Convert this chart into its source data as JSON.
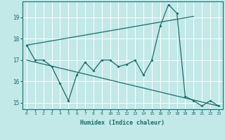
{
  "xlabel": "Humidex (Indice chaleur)",
  "ylabel": "",
  "background_color": "#c2e8e8",
  "line_color": "#1a6b6b",
  "grid_color": "#ffffff",
  "xlim": [
    -0.5,
    23.5
  ],
  "ylim": [
    14.7,
    19.75
  ],
  "x_ticks": [
    0,
    1,
    2,
    3,
    4,
    5,
    6,
    7,
    8,
    9,
    10,
    11,
    12,
    13,
    14,
    15,
    16,
    17,
    18,
    19,
    20,
    21,
    22,
    23
  ],
  "y_ticks": [
    15,
    16,
    17,
    18,
    19
  ],
  "series1_x": [
    0,
    1,
    2,
    3,
    4,
    5,
    6,
    7,
    8,
    9,
    10,
    11,
    12,
    13,
    14,
    15,
    16,
    17,
    18,
    19,
    20,
    21,
    22,
    23
  ],
  "series1_y": [
    17.7,
    17.0,
    17.0,
    16.7,
    15.9,
    15.1,
    16.3,
    16.9,
    16.5,
    17.0,
    17.0,
    16.7,
    16.8,
    17.0,
    16.3,
    17.0,
    18.6,
    19.6,
    19.2,
    15.3,
    15.1,
    14.85,
    15.1,
    14.85
  ],
  "series2_x": [
    0,
    20
  ],
  "series2_y": [
    17.7,
    19.05
  ],
  "series3_x": [
    0,
    23
  ],
  "series3_y": [
    17.0,
    14.85
  ]
}
